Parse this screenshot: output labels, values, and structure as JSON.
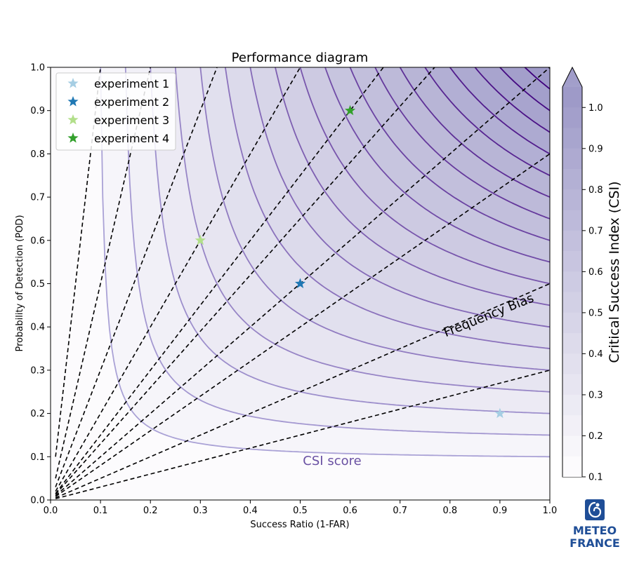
{
  "chart_data": {
    "type": "scatter",
    "title": "Performance diagram",
    "xlabel": "Success Ratio (1-FAR)",
    "ylabel": "Probability of Detection (POD)",
    "xlim": [
      0.0,
      1.0
    ],
    "ylim": [
      0.0,
      1.0
    ],
    "xticks": [
      "0.0",
      "0.1",
      "0.2",
      "0.3",
      "0.4",
      "0.5",
      "0.6",
      "0.7",
      "0.8",
      "0.9",
      "1.0"
    ],
    "yticks": [
      "0.0",
      "0.1",
      "0.2",
      "0.3",
      "0.4",
      "0.5",
      "0.6",
      "0.7",
      "0.8",
      "0.9",
      "1.0"
    ],
    "series": [
      {
        "name": "experiment 1",
        "x": [
          0.9
        ],
        "y": [
          0.2
        ],
        "color": "#a6cee3",
        "marker": "star"
      },
      {
        "name": "experiment 2",
        "x": [
          0.5
        ],
        "y": [
          0.5
        ],
        "color": "#1f78b4",
        "marker": "star"
      },
      {
        "name": "experiment 3",
        "x": [
          0.3
        ],
        "y": [
          0.6
        ],
        "color": "#b2df8a",
        "marker": "star"
      },
      {
        "name": "experiment 4",
        "x": [
          0.6
        ],
        "y": [
          0.9
        ],
        "color": "#33a02c",
        "marker": "star"
      }
    ],
    "csi_contours": [
      0.1,
      0.15,
      0.2,
      0.25,
      0.3,
      0.35,
      0.4,
      0.45,
      0.5,
      0.55,
      0.6,
      0.65,
      0.7,
      0.75,
      0.8,
      0.85,
      0.9,
      0.95
    ],
    "frequency_bias_lines": [
      0.3,
      0.5,
      0.8,
      1.0,
      1.3,
      1.5,
      2.0,
      3.0,
      5.0,
      10.0
    ],
    "legend_position": "top-left",
    "grid": false,
    "colorbar": {
      "label": "Critical Success Index (CSI)",
      "range": [
        0.1,
        1.0
      ],
      "ticks": [
        "0.1",
        "0.2",
        "0.3",
        "0.4",
        "0.5",
        "0.6",
        "0.7",
        "0.8",
        "0.9",
        "1.0"
      ],
      "extend": "max",
      "colormap": "Purples"
    },
    "annotations": {
      "frequency_bias": "Frequency Bias",
      "csi_score": "CSI score"
    }
  },
  "logo": {
    "line1": "METEO",
    "line2": "FRANCE",
    "color": "#1f4e97"
  }
}
